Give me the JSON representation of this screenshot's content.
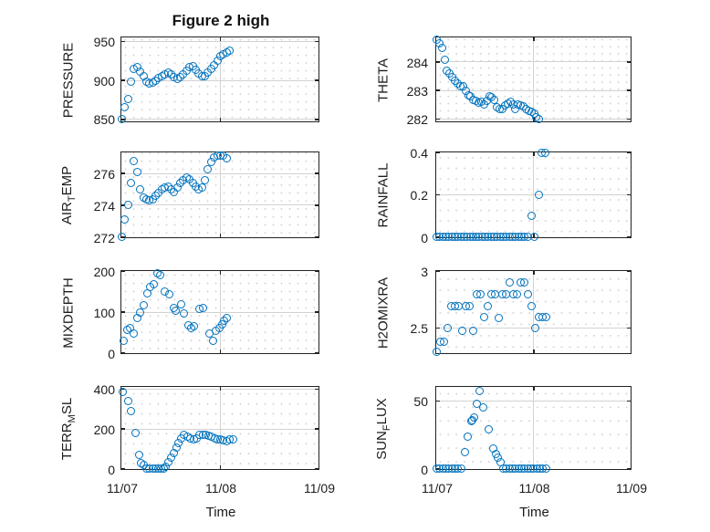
{
  "title": "Figure 2 high",
  "colors": {
    "marker": "#0072BD",
    "axis_box": "#222222",
    "major_grid": "#d2d2d2",
    "minor_grid_dots": "#d6d6d6",
    "text": "#1c1c1c",
    "background": "#ffffff"
  },
  "x_axis": {
    "label": "Time",
    "xlim_hours": [
      0,
      48
    ],
    "minor_step_hours": 2,
    "ticks": [
      {
        "hours": 0,
        "label": "11/07"
      },
      {
        "hours": 24,
        "label": "11/08"
      },
      {
        "hours": 48,
        "label": "11/09"
      }
    ]
  },
  "chart_data": [
    {
      "name": "PRESSURE",
      "type": "scatter",
      "col": 0,
      "row": 0,
      "ylabel": "PRESSURE",
      "ylabel_parts": [
        {
          "text": "PRESSURE",
          "subscript": false
        }
      ],
      "ylim": [
        847,
        955
      ],
      "minor_y_step": 10,
      "yticks": [
        {
          "value": 850,
          "label": "850"
        },
        {
          "value": 900,
          "label": "900"
        },
        {
          "value": 950,
          "label": "950"
        }
      ],
      "x_hours": [
        0,
        0.75,
        1.5,
        2.25,
        3,
        3.75,
        4.5,
        5.25,
        6,
        6.75,
        7.5,
        8.25,
        9,
        9.75,
        10.5,
        11.25,
        12,
        12.75,
        13.5,
        14.25,
        15,
        15.75,
        16.5,
        17.25,
        18,
        18.75,
        19.5,
        20.25,
        21,
        21.75,
        22.5,
        23.25,
        24,
        24.75,
        25.5,
        26.25
      ],
      "y": [
        850,
        866,
        876,
        898,
        915,
        917,
        912,
        905,
        898,
        896,
        897,
        900,
        903,
        906,
        908,
        910,
        908,
        904,
        902,
        904,
        908,
        913,
        917,
        918,
        914,
        909,
        905,
        906,
        910,
        915,
        920,
        926,
        931,
        934,
        936,
        938
      ]
    },
    {
      "name": "AIR_TEMP",
      "type": "scatter",
      "col": 0,
      "row": 1,
      "ylabel": "AIR_TEMP",
      "ylabel_parts": [
        {
          "text": "AIR",
          "subscript": false
        },
        {
          "text": "T",
          "subscript": true
        },
        {
          "text": "EMP",
          "subscript": false
        }
      ],
      "ylim": [
        272,
        277.3
      ],
      "minor_y_step": 0.5,
      "yticks": [
        {
          "value": 272,
          "label": "272"
        },
        {
          "value": 274,
          "label": "274"
        },
        {
          "value": 276,
          "label": "276"
        }
      ],
      "x_hours": [
        0,
        0.75,
        1.5,
        2.25,
        3,
        3.75,
        4.5,
        5.25,
        6,
        6.75,
        7.5,
        8.25,
        9,
        9.75,
        10.5,
        11.25,
        12,
        12.75,
        13.5,
        14.25,
        15,
        15.75,
        16.5,
        17.25,
        18,
        18.75,
        19.5,
        20.25,
        21,
        21.75,
        22.5,
        23.25,
        24,
        24.75,
        25.5
      ],
      "y": [
        272,
        273.1,
        274,
        275.4,
        276.8,
        276.1,
        275,
        274.5,
        274.35,
        274.3,
        274.4,
        274.6,
        274.75,
        275,
        275.1,
        275.2,
        275,
        274.85,
        275.1,
        275.4,
        275.6,
        275.75,
        275.65,
        275.4,
        275.2,
        275,
        275.1,
        275.6,
        276.25,
        276.7,
        277,
        277.15,
        277.1,
        277.15,
        276.95
      ]
    },
    {
      "name": "MIXDEPTH",
      "type": "scatter",
      "col": 0,
      "row": 2,
      "ylabel": "MIXDEPTH",
      "ylabel_parts": [
        {
          "text": "MIXDEPTH",
          "subscript": false
        }
      ],
      "ylim": [
        0,
        200
      ],
      "minor_y_step": 20,
      "yticks": [
        {
          "value": 0,
          "label": "0"
        },
        {
          "value": 100,
          "label": "100"
        },
        {
          "value": 200,
          "label": "200"
        }
      ],
      "x_hours": [
        0.5,
        1.3,
        2.1,
        2.9,
        3.7,
        4.5,
        5.3,
        6.2,
        7,
        7.8,
        8.6,
        9.4,
        10.5,
        11.5,
        12.6,
        13.2,
        14.4,
        15.1,
        16.2,
        16.9,
        17.5,
        18.9,
        19.7,
        21.4,
        22.3,
        23,
        23.7,
        24.4,
        25,
        25.6
      ],
      "y": [
        30,
        57,
        62,
        48,
        85,
        100,
        118,
        146,
        162,
        168,
        195,
        190,
        150,
        145,
        110,
        104,
        120,
        97,
        68,
        62,
        65,
        108,
        110,
        47,
        29,
        55,
        62,
        71,
        80,
        85
      ]
    },
    {
      "name": "TERR_MSL",
      "type": "scatter",
      "col": 0,
      "row": 3,
      "ylabel": "TERR_MSL",
      "ylabel_parts": [
        {
          "text": "TERR",
          "subscript": false
        },
        {
          "text": "M",
          "subscript": true
        },
        {
          "text": "SL",
          "subscript": false
        }
      ],
      "ylim": [
        0,
        410
      ],
      "minor_y_step": 50,
      "yticks": [
        {
          "value": 0,
          "label": "0"
        },
        {
          "value": 200,
          "label": "200"
        },
        {
          "value": 400,
          "label": "400"
        }
      ],
      "x_hours": [
        0.2,
        1.5,
        2.3,
        3.4,
        4.2,
        4.8,
        5.4,
        6.1,
        6.8,
        7.5,
        8.2,
        8.9,
        9.6,
        10.3,
        10.8,
        11.3,
        12,
        12.6,
        13.3,
        13.9,
        14.5,
        15.2,
        16,
        16.8,
        17.5,
        18.2,
        19,
        19.7,
        20.4,
        21.2,
        21.9,
        22.6,
        23.3,
        24.1,
        24.8,
        25.5,
        26.2,
        27.1
      ],
      "y": [
        385,
        342,
        290,
        180,
        71,
        30,
        19,
        0,
        0,
        0,
        0,
        0,
        0,
        0,
        10,
        35,
        55,
        80,
        105,
        128,
        155,
        170,
        161,
        155,
        150,
        155,
        170,
        173,
        170,
        166,
        161,
        155,
        150,
        150,
        146,
        140,
        150,
        150
      ]
    },
    {
      "name": "THETA",
      "type": "scatter",
      "col": 1,
      "row": 0,
      "ylabel": "THETA",
      "ylabel_parts": [
        {
          "text": "THETA",
          "subscript": false
        }
      ],
      "ylim": [
        281.9,
        284.85
      ],
      "minor_y_step": 0.25,
      "yticks": [
        {
          "value": 282,
          "label": "282"
        },
        {
          "value": 283,
          "label": "283"
        },
        {
          "value": 284,
          "label": "284"
        }
      ],
      "x_hours": [
        0,
        0.65,
        1.3,
        1.95,
        2.6,
        3.25,
        3.9,
        4.55,
        5.2,
        5.85,
        6.5,
        7.15,
        7.8,
        8.45,
        9.1,
        9.75,
        10.4,
        11.05,
        11.7,
        12.35,
        13,
        13.65,
        14.3,
        14.95,
        15.6,
        16.25,
        16.9,
        17.55,
        18.2,
        18.85,
        19.5,
        20.15,
        20.8,
        21.45,
        22.1,
        22.75,
        23.4,
        24.05,
        24.7,
        25.35
      ],
      "y": [
        284.77,
        284.65,
        284.5,
        284.08,
        283.7,
        283.6,
        283.48,
        283.35,
        283.25,
        283.16,
        283.14,
        283,
        282.84,
        282.79,
        282.68,
        282.65,
        282.57,
        282.6,
        282.52,
        282.65,
        282.79,
        282.76,
        282.68,
        282.42,
        282.33,
        282.33,
        282.47,
        282.55,
        282.6,
        282.5,
        282.35,
        282.52,
        282.47,
        282.44,
        282.33,
        282.29,
        282.26,
        282.18,
        282.07,
        281.98
      ]
    },
    {
      "name": "RAINFALL",
      "type": "scatter",
      "col": 1,
      "row": 1,
      "ylabel": "RAINFALL",
      "ylabel_parts": [
        {
          "text": "RAINFALL",
          "subscript": false
        }
      ],
      "ylim": [
        0,
        0.4
      ],
      "minor_y_step": 0.05,
      "yticks": [
        {
          "value": 0,
          "label": "0"
        },
        {
          "value": 0.2,
          "label": "0.2"
        },
        {
          "value": 0.4,
          "label": "0.4"
        }
      ],
      "x_hours": [
        0,
        0.75,
        1.5,
        2.25,
        3,
        3.75,
        4.5,
        5.25,
        6,
        6.75,
        7.5,
        8.25,
        9,
        9.75,
        10.5,
        11.25,
        12,
        12.75,
        13.5,
        14.25,
        15,
        15.75,
        16.5,
        17.25,
        18,
        18.75,
        19.5,
        20.25,
        21,
        21.75,
        22.5,
        23.4,
        24.1,
        25.3,
        26,
        26.9
      ],
      "y": [
        0,
        0,
        0,
        0,
        0,
        0,
        0,
        0,
        0,
        0,
        0,
        0,
        0,
        0,
        0,
        0,
        0,
        0,
        0,
        0,
        0,
        0,
        0,
        0,
        0,
        0,
        0,
        0,
        0,
        0,
        0,
        0.1,
        0,
        0.2,
        0.4,
        0.4
      ]
    },
    {
      "name": "H2OMIXRA",
      "type": "scatter",
      "col": 1,
      "row": 2,
      "ylabel": "H2OMIXRA",
      "ylabel_parts": [
        {
          "text": "H2OMIXRA",
          "subscript": false
        }
      ],
      "ylim": [
        2.28,
        3
      ],
      "minor_y_step": 0.1,
      "yticks": [
        {
          "value": 2.5,
          "label": "2.5"
        },
        {
          "value": 3,
          "label": "3"
        }
      ],
      "x_hours": [
        0,
        0.9,
        1.8,
        2.7,
        3.6,
        4.5,
        5.4,
        6.3,
        7.2,
        8.1,
        9,
        9.9,
        10.8,
        11.7,
        12.6,
        13.5,
        14.4,
        15.3,
        16.2,
        17.1,
        18,
        18.9,
        19.8,
        20.7,
        21.6,
        22.5,
        23.4,
        24.3,
        25.2,
        26.1,
        27
      ],
      "y": [
        2.29,
        2.38,
        2.38,
        2.5,
        2.69,
        2.69,
        2.69,
        2.48,
        2.69,
        2.69,
        2.48,
        2.8,
        2.8,
        2.6,
        2.69,
        2.8,
        2.8,
        2.59,
        2.8,
        2.8,
        2.9,
        2.8,
        2.8,
        2.9,
        2.9,
        2.8,
        2.69,
        2.5,
        2.6,
        2.6,
        2.6
      ]
    },
    {
      "name": "SUN_FLUX",
      "type": "scatter",
      "col": 1,
      "row": 3,
      "ylabel": "SUN_FLUX",
      "ylabel_parts": [
        {
          "text": "SUN",
          "subscript": false
        },
        {
          "text": "F",
          "subscript": true
        },
        {
          "text": "LUX",
          "subscript": false
        }
      ],
      "ylim": [
        0,
        60
      ],
      "minor_y_step": 10,
      "yticks": [
        {
          "value": 0,
          "label": "0"
        },
        {
          "value": 50,
          "label": "50"
        }
      ],
      "x_hours": [
        0,
        0.75,
        1.5,
        2.25,
        3,
        3.75,
        4.5,
        5.25,
        6,
        6.9,
        7.7,
        8.5,
        8.9,
        9.3,
        10,
        10.7,
        11.5,
        12.9,
        13.9,
        14.6,
        15.1,
        15.7,
        16.5,
        17.25,
        18,
        18.75,
        19.5,
        20.25,
        21,
        21.75,
        22.5,
        23.25,
        24,
        24.75,
        25.5,
        26.25,
        27
      ],
      "y": [
        0,
        0,
        0,
        0,
        0,
        0,
        0,
        0,
        0,
        12,
        24,
        35,
        36,
        38,
        48,
        57,
        45,
        29,
        15,
        11,
        8,
        5,
        0,
        0,
        0,
        0,
        0,
        0,
        0,
        0,
        0,
        0,
        0,
        0,
        0,
        0,
        0
      ]
    }
  ]
}
